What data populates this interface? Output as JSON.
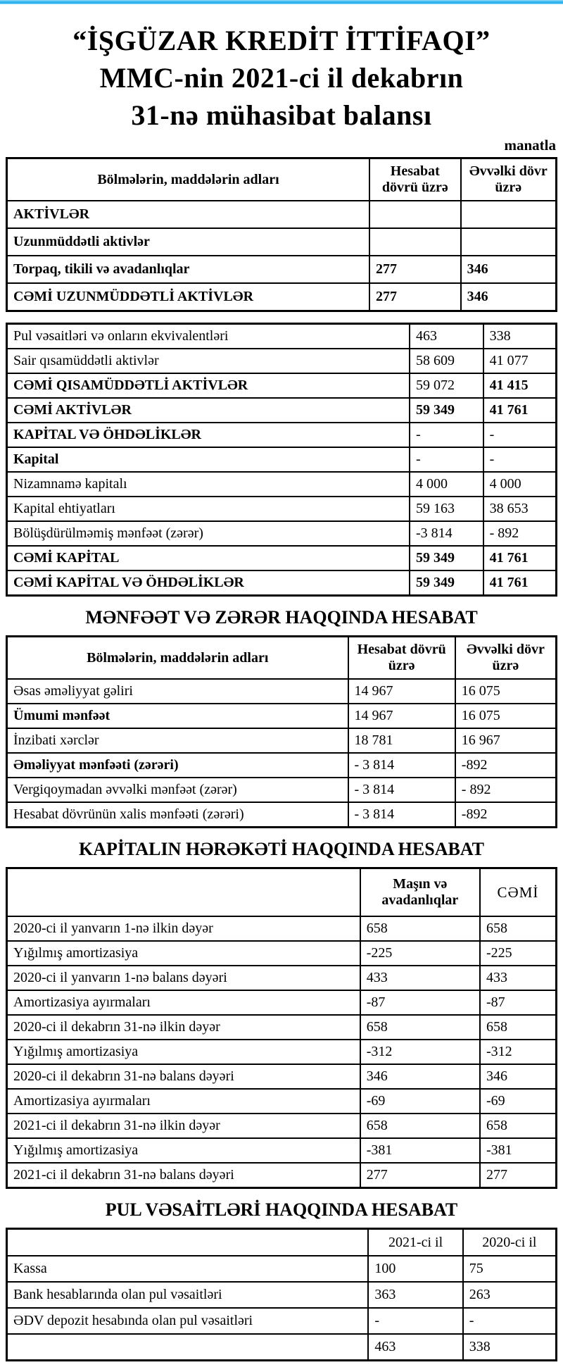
{
  "meta": {
    "currency_note": "manatla",
    "accent_bar_color": "#2eb3ee"
  },
  "title": {
    "line1": "“İŞGÜZAR KREDİT İTTİFAQI”",
    "line2": "MMC-nin 2021-ci il dekabrın",
    "line3": "31-nə mühasibat balansı"
  },
  "section_titles": {
    "profit_loss": "MƏNFƏƏT VƏ ZƏRƏR HAQQINDA HESABAT",
    "capital_movement": "KAPİTALIN HƏRƏKƏTİ HAQQINDA HESABAT",
    "cash": "PUL VƏSAİTLƏRİ HAQQINDA HESABAT"
  },
  "tables": {
    "balance1": {
      "header": {
        "c": [
          "Bölmələrin, maddələrin adları",
          "Hesabat dövrü üzrə",
          "Əvvəlki dövr üzrə"
        ],
        "b": [
          1,
          1,
          1
        ]
      },
      "rows": [
        {
          "c": [
            "AKTİVLƏR",
            "",
            ""
          ],
          "b": [
            1,
            0,
            0
          ]
        },
        {
          "c": [
            "Uzunmüddətli aktivlər",
            "",
            ""
          ],
          "b": [
            1,
            0,
            0
          ]
        },
        {
          "c": [
            "Torpaq, tikili və avadanlıqlar",
            "277",
            "346"
          ],
          "b": [
            1,
            1,
            1
          ]
        },
        {
          "c": [
            "CƏMİ  UZUNMÜDDƏTLİ  AKTİVLƏR",
            "277",
            "346"
          ],
          "b": [
            1,
            1,
            1
          ]
        }
      ]
    },
    "balance2": {
      "rows": [
        {
          "c": [
            "Pul vəsaitləri və onların ekvivalentləri",
            "463",
            "338"
          ],
          "b": [
            0,
            0,
            0
          ]
        },
        {
          "c": [
            "Sair qısamüddətli aktivlər",
            "58 609",
            "41 077"
          ],
          "b": [
            0,
            0,
            0
          ]
        },
        {
          "c": [
            "CƏMİ QISAMÜDDƏTLİ AKTİVLƏR",
            "59 072",
            "41 415"
          ],
          "b": [
            1,
            0,
            1
          ]
        },
        {
          "c": [
            "CƏMİ AKTİVLƏR",
            "59 349",
            "41 761"
          ],
          "b": [
            1,
            1,
            1
          ]
        },
        {
          "c": [
            "KAPİTAL VƏ ÖHDƏLİKLƏR",
            "-",
            "-"
          ],
          "b": [
            1,
            0,
            0
          ]
        },
        {
          "c": [
            "Kapital",
            "-",
            "-"
          ],
          "b": [
            1,
            0,
            0
          ]
        },
        {
          "c": [
            "Nizamnamə kapitalı",
            "4 000",
            "4 000"
          ],
          "b": [
            0,
            0,
            0
          ]
        },
        {
          "c": [
            "Kapital ehtiyatları",
            "59 163",
            "38 653"
          ],
          "b": [
            0,
            0,
            0
          ]
        },
        {
          "c": [
            "Bölüşdürülməmiş mənfəət (zərər)",
            "-3 814",
            "- 892"
          ],
          "b": [
            0,
            0,
            0
          ]
        },
        {
          "c": [
            "CƏMİ KAPİTAL",
            "59 349",
            "41 761"
          ],
          "b": [
            1,
            1,
            1
          ]
        },
        {
          "c": [
            "CƏMİ KAPİTAL VƏ ÖHDƏLİKLƏR",
            "59 349",
            "41 761"
          ],
          "b": [
            1,
            1,
            1
          ]
        }
      ]
    },
    "profit_loss": {
      "header": {
        "c": [
          "Bölmələrin, maddələrin adları",
          "Hesabat dövrü üzrə",
          "Əvvəlki dövr üzrə"
        ],
        "b": [
          1,
          1,
          1
        ]
      },
      "rows": [
        {
          "c": [
            "Əsas əməliyyat gəliri",
            "14 967",
            "16 075"
          ],
          "b": [
            0,
            0,
            0
          ]
        },
        {
          "c": [
            "Ümumi mənfəət",
            "14 967",
            "16 075"
          ],
          "b": [
            1,
            0,
            0
          ]
        },
        {
          "c": [
            "İnzibati xərclər",
            "18 781",
            "16 967"
          ],
          "b": [
            0,
            0,
            0
          ]
        },
        {
          "c": [
            "Əməliyyat mənfəəti (zərəri)",
            "- 3 814",
            "-892"
          ],
          "b": [
            1,
            0,
            0
          ]
        },
        {
          "c": [
            "Vergiqoymadan əvvəlki mənfəət (zərər)",
            "- 3 814",
            "- 892"
          ],
          "b": [
            0,
            0,
            0
          ]
        },
        {
          "c": [
            "Hesabat dövrünün xalis mənfəəti (zərəri)",
            "- 3 814",
            "-892"
          ],
          "b": [
            0,
            0,
            0
          ]
        }
      ]
    },
    "capital_movement": {
      "header": {
        "c": [
          "",
          "Maşın və avadanlıqlar",
          "CƏMİ"
        ],
        "b": [
          0,
          1,
          0
        ]
      },
      "rows": [
        {
          "c": [
            "2020-ci il yanvarın 1-nə ilkin dəyər",
            "658",
            "658"
          ],
          "b": [
            0,
            0,
            0
          ]
        },
        {
          "c": [
            "Yığılmış amortizasiya",
            "-225",
            "-225"
          ],
          "b": [
            0,
            0,
            0
          ]
        },
        {
          "c": [
            "2020-ci il yanvarın 1-nə balans dəyəri",
            "433",
            "433"
          ],
          "b": [
            0,
            0,
            0
          ]
        },
        {
          "c": [
            "Amortizasiya ayırmaları",
            "-87",
            "-87"
          ],
          "b": [
            0,
            0,
            0
          ]
        },
        {
          "c": [
            "2020-ci il dekabrın 31-nə ilkin dəyər",
            "658",
            "658"
          ],
          "b": [
            0,
            0,
            0
          ]
        },
        {
          "c": [
            "Yığılmış amortizasiya",
            "-312",
            "-312"
          ],
          "b": [
            0,
            0,
            0
          ]
        },
        {
          "c": [
            "2020-ci il dekabrın 31-nə balans dəyəri",
            "346",
            "346"
          ],
          "b": [
            0,
            0,
            0
          ]
        },
        {
          "c": [
            "Amortizasiya ayırmaları",
            "-69",
            "-69"
          ],
          "b": [
            0,
            0,
            0
          ]
        },
        {
          "c": [
            "2021-ci il dekabrın 31-nə ilkin dəyər",
            "658",
            "658"
          ],
          "b": [
            0,
            0,
            0
          ]
        },
        {
          "c": [
            "Yığılmış amortizasiya",
            "-381",
            "-381"
          ],
          "b": [
            0,
            0,
            0
          ]
        },
        {
          "c": [
            "2021-ci il dekabrın 31-nə balans dəyəri",
            "277",
            "277"
          ],
          "b": [
            0,
            0,
            0
          ]
        }
      ]
    },
    "cash": {
      "header": {
        "c": [
          "",
          "2021-ci il",
          "2020-ci il"
        ],
        "b": [
          0,
          0,
          0
        ]
      },
      "rows": [
        {
          "c": [
            "Kassa",
            "100",
            "75"
          ],
          "b": [
            0,
            0,
            0
          ]
        },
        {
          "c": [
            "Bank hesablarında olan pul vəsaitləri",
            "363",
            "263"
          ],
          "b": [
            0,
            0,
            0
          ]
        },
        {
          "c": [
            "ƏDV depozit hesabında olan pul vəsaitləri",
            "-",
            "-"
          ],
          "b": [
            0,
            0,
            0
          ]
        },
        {
          "c": [
            "",
            "463",
            "338"
          ],
          "b": [
            0,
            0,
            0
          ]
        }
      ]
    }
  }
}
